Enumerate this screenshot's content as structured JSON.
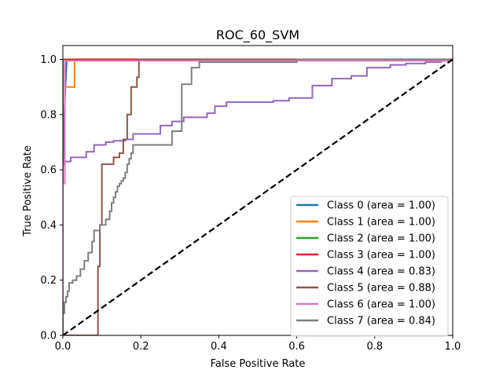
{
  "chart_data": {
    "type": "line",
    "title": "ROC_60_SVM",
    "xlabel": "False Positive Rate",
    "ylabel": "True Positive Rate",
    "xlim": [
      0,
      1
    ],
    "ylim": [
      0,
      1.05
    ],
    "xticks": [
      0,
      0.2,
      0.4,
      0.6,
      0.8,
      1
    ],
    "xtick_labels": [
      "0.0",
      "0.2",
      "0.4",
      "0.6",
      "0.8",
      "1.0"
    ],
    "yticks": [
      0,
      0.2,
      0.4,
      0.6,
      0.8,
      1
    ],
    "ytick_labels": [
      "0.0",
      "0.2",
      "0.4",
      "0.6",
      "0.8",
      "1.0"
    ],
    "grid": false,
    "legend_position": "lower-right",
    "diagonal": {
      "x": [
        0,
        1
      ],
      "y": [
        0,
        1
      ],
      "color": "#000000",
      "style": "dashed"
    },
    "series": [
      {
        "name": "Class 0 (area = 1.00)",
        "color": "#1f77b4",
        "x": [
          0,
          0,
          0.005,
          0.01,
          1
        ],
        "y": [
          0,
          0.6,
          0.85,
          1.0,
          1.0
        ]
      },
      {
        "name": "Class 1 (area = 1.00)",
        "color": "#ff7f0e",
        "x": [
          0,
          0,
          0.005,
          0.005,
          0.03,
          0.03,
          1
        ],
        "y": [
          0,
          0.8,
          0.8,
          0.9,
          0.9,
          1.0,
          1.0
        ]
      },
      {
        "name": "Class 2 (area = 1.00)",
        "color": "#2ca02c",
        "x": [
          0,
          0,
          1
        ],
        "y": [
          0,
          1.0,
          1.0
        ]
      },
      {
        "name": "Class 3 (area = 1.00)",
        "color": "#d62728",
        "x": [
          0,
          0,
          0.005,
          0.005,
          1
        ],
        "y": [
          0,
          0.62,
          0.62,
          1.0,
          1.0
        ]
      },
      {
        "name": "Class 4 (area = 0.83)",
        "color": "#9467bd",
        "x": [
          0,
          0,
          0.02,
          0.02,
          0.06,
          0.06,
          0.08,
          0.08,
          0.11,
          0.11,
          0.13,
          0.13,
          0.16,
          0.16,
          0.18,
          0.18,
          0.25,
          0.25,
          0.28,
          0.28,
          0.31,
          0.31,
          0.37,
          0.37,
          0.39,
          0.39,
          0.42,
          0.42,
          0.54,
          0.54,
          0.58,
          0.58,
          0.64,
          0.64,
          0.69,
          0.69,
          0.74,
          0.74,
          0.78,
          0.78,
          0.84,
          0.84,
          0.88,
          0.88,
          0.93,
          0.93,
          0.97,
          0.97,
          1.0,
          1.0
        ],
        "y": [
          0,
          0.63,
          0.63,
          0.645,
          0.645,
          0.665,
          0.665,
          0.69,
          0.69,
          0.7,
          0.7,
          0.705,
          0.705,
          0.71,
          0.71,
          0.73,
          0.73,
          0.76,
          0.76,
          0.775,
          0.775,
          0.79,
          0.79,
          0.805,
          0.805,
          0.83,
          0.83,
          0.845,
          0.845,
          0.85,
          0.85,
          0.86,
          0.86,
          0.905,
          0.905,
          0.93,
          0.93,
          0.94,
          0.94,
          0.97,
          0.97,
          0.98,
          0.98,
          0.985,
          0.985,
          0.99,
          0.99,
          0.995,
          0.995,
          1.0
        ]
      },
      {
        "name": "Class 5 (area = 0.88)",
        "color": "#8c564b",
        "x": [
          0,
          0.09,
          0.09,
          0.095,
          0.095,
          0.1,
          0.1,
          0.13,
          0.13,
          0.145,
          0.145,
          0.155,
          0.155,
          0.165,
          0.165,
          0.175,
          0.175,
          0.19,
          0.19,
          0.195,
          0.195,
          1.0
        ],
        "y": [
          0,
          0,
          0.25,
          0.25,
          0.4,
          0.4,
          0.62,
          0.62,
          0.645,
          0.645,
          0.66,
          0.66,
          0.71,
          0.71,
          0.8,
          0.8,
          0.9,
          0.9,
          0.935,
          0.935,
          1.0,
          1.0
        ]
      },
      {
        "name": "Class 6 (area = 1.00)",
        "color": "#e377c2",
        "x": [
          0,
          0,
          0.005,
          0.005,
          1
        ],
        "y": [
          0,
          0.55,
          0.55,
          0.995,
          0.995
        ]
      },
      {
        "name": "Class 7 (area = 0.84)",
        "color": "#7f7f7f",
        "x": [
          0,
          0,
          0.004,
          0.004,
          0.008,
          0.008,
          0.012,
          0.012,
          0.016,
          0.016,
          0.025,
          0.025,
          0.035,
          0.035,
          0.045,
          0.045,
          0.055,
          0.055,
          0.065,
          0.065,
          0.075,
          0.075,
          0.08,
          0.08,
          0.095,
          0.095,
          0.11,
          0.11,
          0.12,
          0.12,
          0.125,
          0.125,
          0.13,
          0.13,
          0.135,
          0.135,
          0.14,
          0.14,
          0.145,
          0.145,
          0.15,
          0.15,
          0.155,
          0.155,
          0.16,
          0.16,
          0.165,
          0.165,
          0.17,
          0.17,
          0.175,
          0.175,
          0.18,
          0.18,
          0.28,
          0.28,
          0.305,
          0.305,
          0.33,
          0.33,
          0.35,
          0.35,
          0.6,
          0.6,
          1.0
        ],
        "y": [
          0,
          0.08,
          0.08,
          0.12,
          0.12,
          0.14,
          0.14,
          0.16,
          0.16,
          0.19,
          0.19,
          0.2,
          0.2,
          0.215,
          0.215,
          0.24,
          0.24,
          0.27,
          0.27,
          0.3,
          0.3,
          0.34,
          0.34,
          0.38,
          0.38,
          0.4,
          0.4,
          0.42,
          0.42,
          0.45,
          0.45,
          0.48,
          0.48,
          0.5,
          0.5,
          0.52,
          0.52,
          0.54,
          0.54,
          0.55,
          0.55,
          0.56,
          0.56,
          0.57,
          0.57,
          0.59,
          0.59,
          0.62,
          0.62,
          0.64,
          0.64,
          0.66,
          0.66,
          0.69,
          0.69,
          0.74,
          0.74,
          0.91,
          0.91,
          0.97,
          0.97,
          0.99,
          0.99,
          1.0,
          1.0
        ]
      }
    ]
  }
}
